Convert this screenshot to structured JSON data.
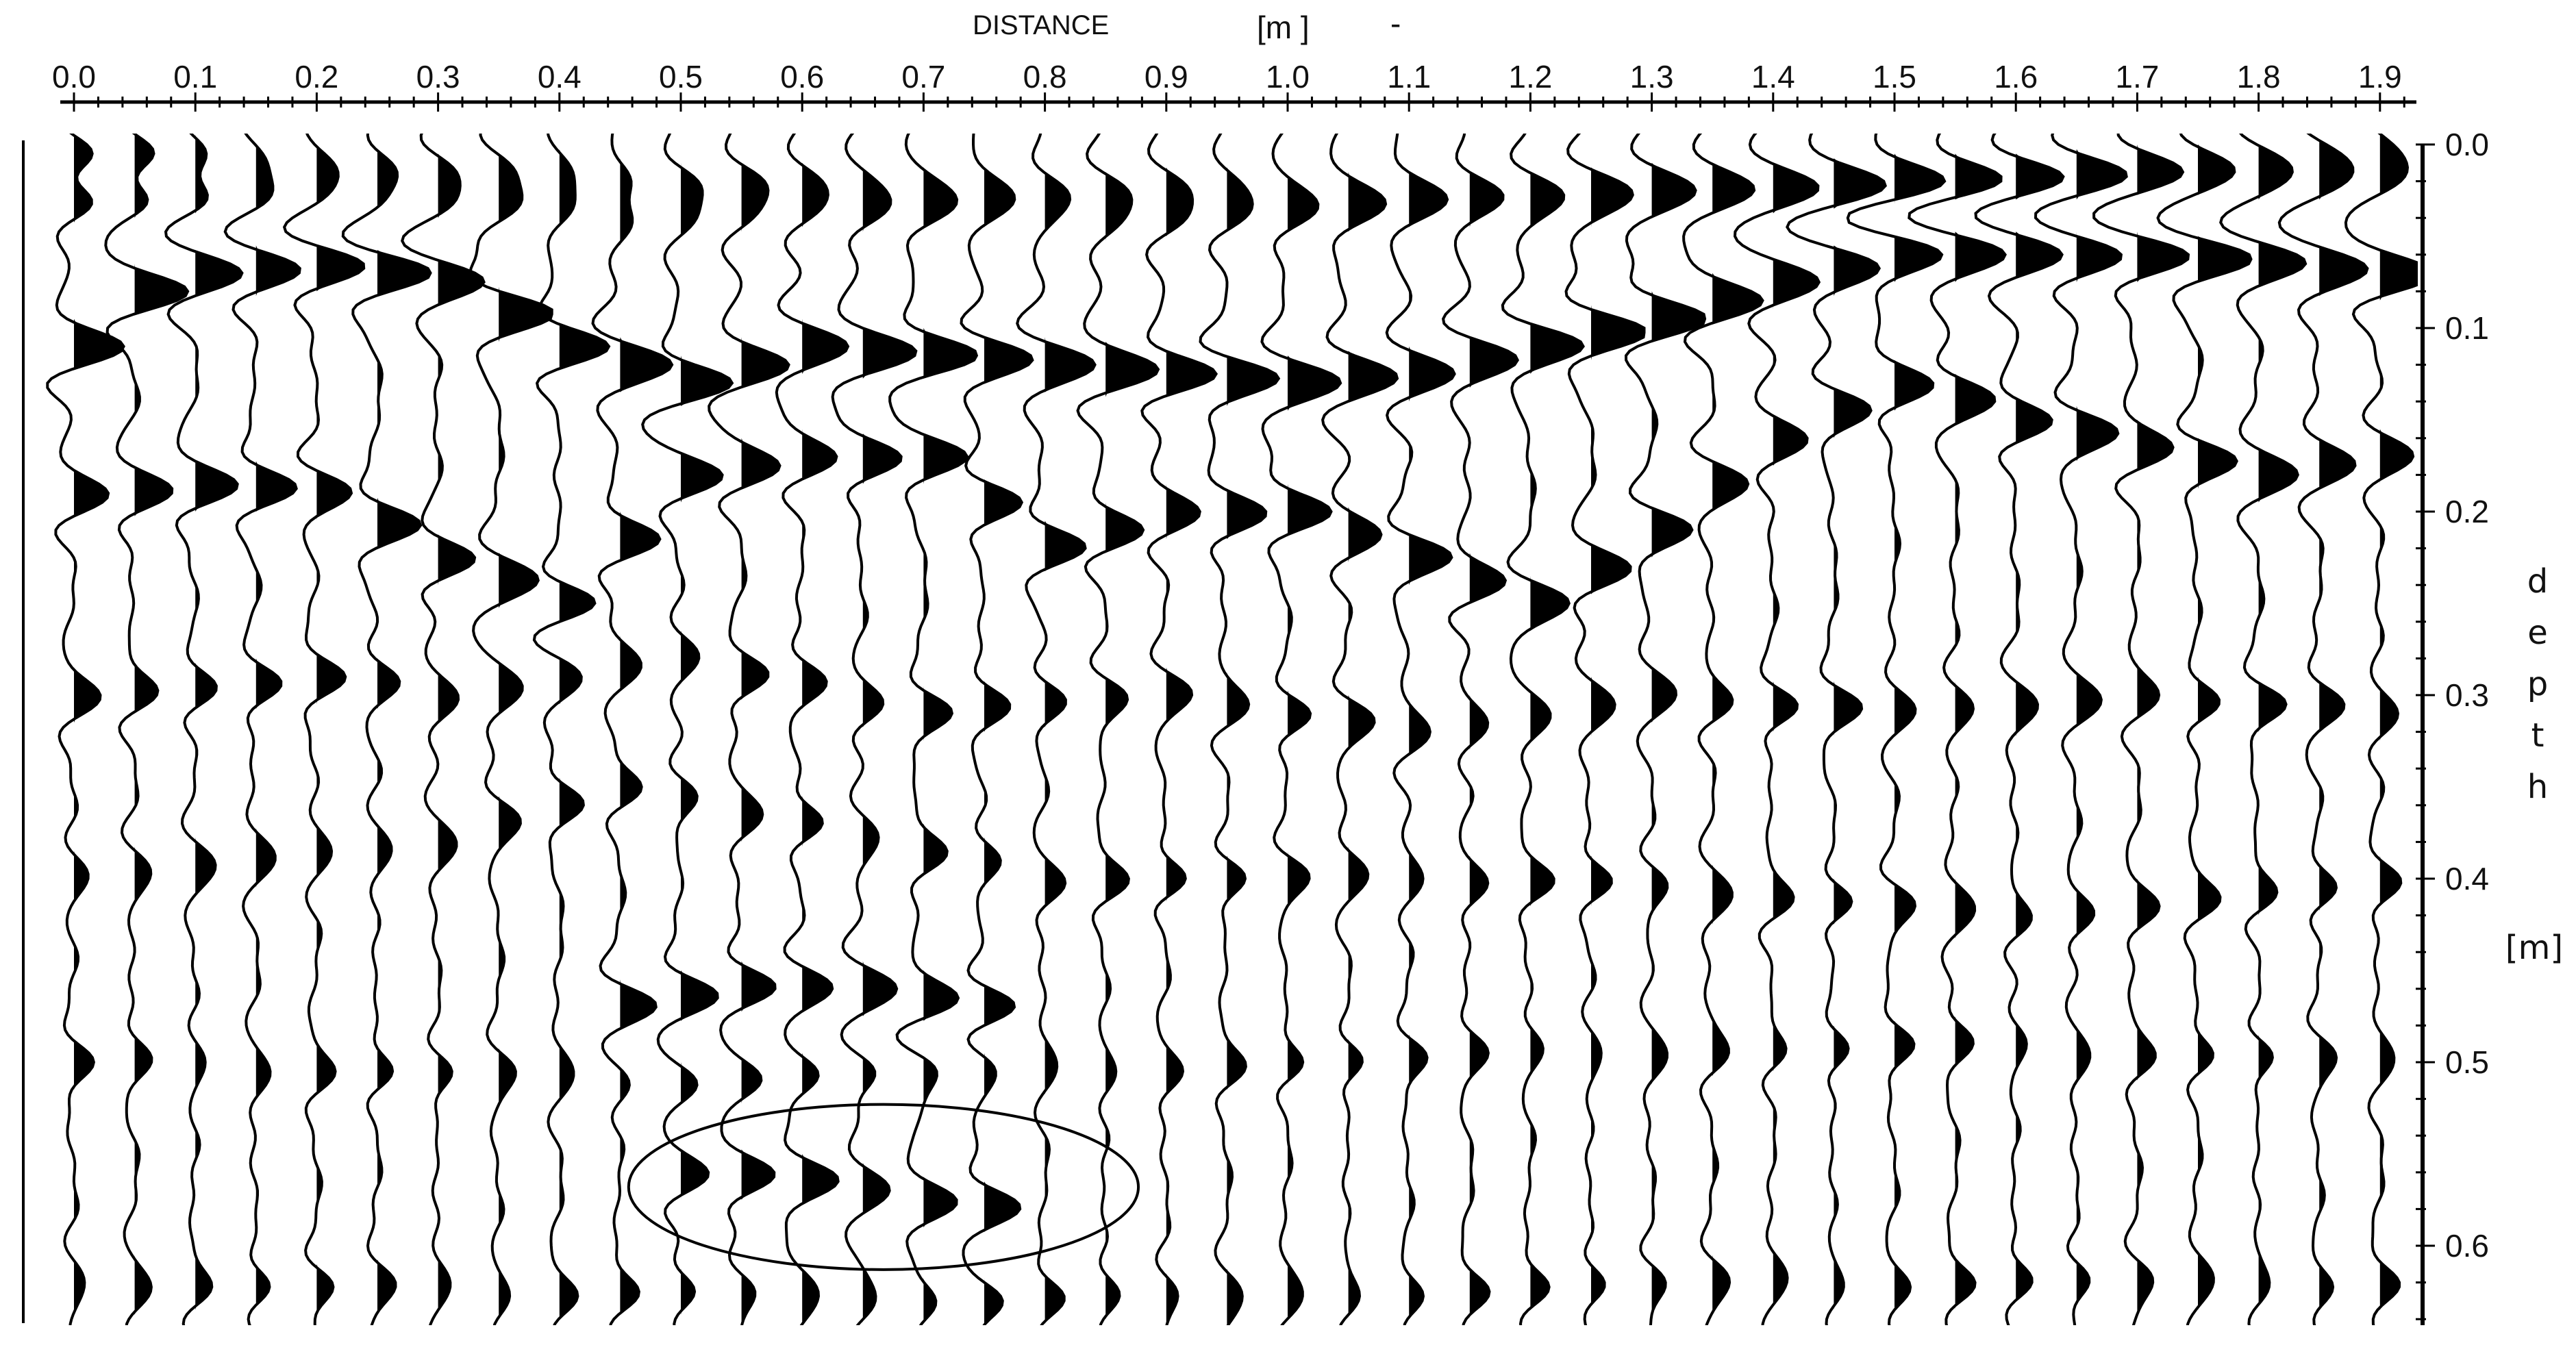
{
  "chart_data": {
    "type": "line",
    "style": "wiggle-trace radargram (positive lobes filled black)",
    "xlabel": "DISTANCE",
    "xlabel_unit": "[m ]",
    "xlabel_mark": "-",
    "ylabel_letters": [
      "d",
      "e",
      "p",
      "t",
      "h"
    ],
    "ylabel_unit": "[m]",
    "x_axis_position": "top",
    "y_axis_position": "right",
    "xlim": [
      0.0,
      1.9
    ],
    "ylim": [
      0.0,
      0.64
    ],
    "x_ticks": [
      "0.0",
      "0.1",
      "0.2",
      "0.3",
      "0.4",
      "0.5",
      "0.6",
      "0.7",
      "0.8",
      "0.9",
      "1.0",
      "1.1",
      "1.2",
      "1.3",
      "1.4",
      "1.5",
      "1.6",
      "1.7",
      "1.8",
      "1.9"
    ],
    "y_ticks": [
      "0.0",
      "0.1",
      "0.2",
      "0.3",
      "0.4",
      "0.5",
      "0.6"
    ],
    "grid": false,
    "trace_spacing_m": 0.05,
    "trace_color": "#000000",
    "fill_color": "#000000",
    "reflection_events": [
      {
        "amplitude": 0.6,
        "points": [
          [
            0.0,
            0.005
          ],
          [
            0.5,
            0.02
          ],
          [
            1.0,
            0.025
          ],
          [
            1.5,
            0.02
          ],
          [
            1.9,
            0.005
          ]
        ]
      },
      {
        "amplitude": 1.2,
        "points": [
          [
            0.0,
            0.11
          ],
          [
            0.05,
            0.08
          ],
          [
            0.1,
            0.07
          ],
          [
            0.2,
            0.065
          ],
          [
            0.3,
            0.075
          ],
          [
            0.4,
            0.11
          ],
          [
            0.5,
            0.13
          ],
          [
            0.6,
            0.11
          ],
          [
            0.7,
            0.115
          ],
          [
            0.8,
            0.12
          ],
          [
            0.9,
            0.125
          ],
          [
            1.0,
            0.13
          ],
          [
            1.1,
            0.125
          ],
          [
            1.2,
            0.11
          ],
          [
            1.3,
            0.095
          ],
          [
            1.4,
            0.075
          ],
          [
            1.5,
            0.06
          ],
          [
            1.6,
            0.06
          ],
          [
            1.7,
            0.06
          ],
          [
            1.8,
            0.065
          ],
          [
            1.9,
            0.07
          ]
        ]
      },
      {
        "amplitude": 0.6,
        "points": [
          [
            0.0,
            0.03
          ],
          [
            0.3,
            0.03
          ],
          [
            0.45,
            0.04
          ],
          [
            0.6,
            0.035
          ],
          [
            0.9,
            0.04
          ],
          [
            1.2,
            0.035
          ],
          [
            1.5,
            0.02
          ],
          [
            1.9,
            0.02
          ]
        ]
      },
      {
        "amplitude": 0.9,
        "points": [
          [
            0.0,
            0.19
          ],
          [
            0.1,
            0.185
          ],
          [
            0.2,
            0.19
          ],
          [
            0.3,
            0.225
          ],
          [
            0.4,
            0.25
          ],
          [
            0.5,
            0.18
          ],
          [
            0.6,
            0.17
          ],
          [
            0.7,
            0.17
          ],
          [
            0.8,
            0.22
          ],
          [
            0.9,
            0.2
          ],
          [
            1.0,
            0.2
          ],
          [
            1.1,
            0.225
          ],
          [
            1.2,
            0.25
          ],
          [
            1.3,
            0.21
          ],
          [
            1.4,
            0.16
          ],
          [
            1.5,
            0.13
          ],
          [
            1.6,
            0.15
          ],
          [
            1.7,
            0.165
          ],
          [
            1.8,
            0.18
          ],
          [
            1.9,
            0.17
          ]
        ]
      },
      {
        "amplitude": 0.55,
        "points": [
          [
            0.0,
            0.3
          ],
          [
            0.2,
            0.29
          ],
          [
            0.3,
            0.3
          ],
          [
            0.5,
            0.28
          ],
          [
            0.7,
            0.31
          ],
          [
            0.9,
            0.3
          ],
          [
            1.1,
            0.32
          ],
          [
            1.3,
            0.3
          ],
          [
            1.5,
            0.31
          ],
          [
            1.7,
            0.3
          ],
          [
            1.9,
            0.31
          ]
        ]
      },
      {
        "amplitude": 0.45,
        "points": [
          [
            0.0,
            0.4
          ],
          [
            0.3,
            0.38
          ],
          [
            0.45,
            0.35
          ],
          [
            0.6,
            0.37
          ],
          [
            0.8,
            0.4
          ],
          [
            1.2,
            0.4
          ],
          [
            1.6,
            0.42
          ],
          [
            1.9,
            0.4
          ]
        ]
      },
      {
        "amplitude": 0.8,
        "points": [
          [
            0.45,
            0.47
          ],
          [
            0.55,
            0.46
          ],
          [
            0.65,
            0.46
          ],
          [
            0.75,
            0.47
          ]
        ]
      },
      {
        "amplitude": 0.35,
        "points": [
          [
            0.0,
            0.5
          ],
          [
            0.5,
            0.51
          ],
          [
            1.0,
            0.5
          ],
          [
            1.5,
            0.49
          ],
          [
            1.9,
            0.5
          ]
        ]
      },
      {
        "amplitude": 0.75,
        "points": [
          [
            0.5,
            0.56
          ],
          [
            0.55,
            0.56
          ],
          [
            0.6,
            0.565
          ],
          [
            0.65,
            0.57
          ],
          [
            0.7,
            0.575
          ],
          [
            0.75,
            0.58
          ]
        ]
      },
      {
        "amplitude": 0.35,
        "points": [
          [
            0.0,
            0.62
          ],
          [
            0.8,
            0.63
          ],
          [
            1.4,
            0.62
          ],
          [
            1.9,
            0.62
          ]
        ]
      }
    ],
    "annotations": [
      {
        "type": "ellipse",
        "center": [
          0.667,
          0.568
        ],
        "radius_x_m": 0.21,
        "radius_y_m": 0.045
      }
    ]
  }
}
